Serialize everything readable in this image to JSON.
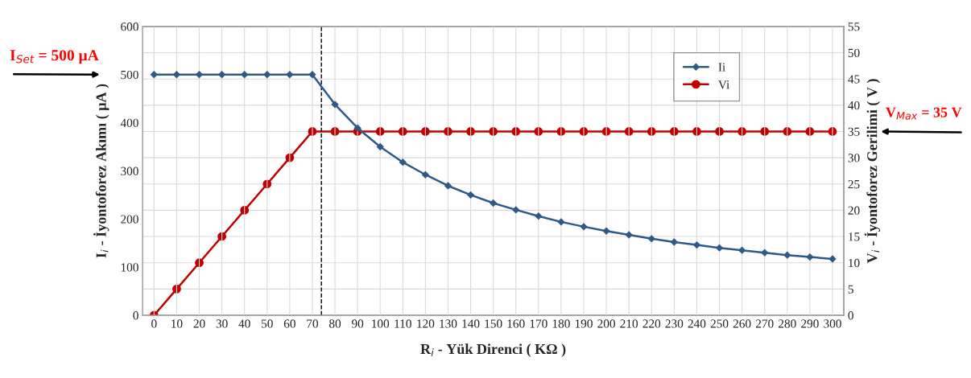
{
  "chart_data": {
    "type": "line",
    "x": [
      0,
      10,
      20,
      30,
      40,
      50,
      60,
      70,
      80,
      90,
      100,
      110,
      120,
      130,
      140,
      150,
      160,
      170,
      180,
      190,
      200,
      210,
      220,
      230,
      240,
      250,
      260,
      270,
      280,
      290,
      300
    ],
    "series": [
      {
        "name": "Ii",
        "color": "#2e5a88",
        "marker": "diamond",
        "values": [
          500,
          500,
          500,
          500,
          500,
          500,
          500,
          500,
          438,
          389,
          350,
          318,
          292,
          269,
          250,
          233,
          219,
          206,
          194,
          184,
          175,
          167,
          159,
          152,
          146,
          140,
          135,
          130,
          125,
          121,
          117
        ]
      },
      {
        "name": "Vi",
        "color": "#c00000",
        "marker": "circle",
        "axis": "y2",
        "values": [
          0,
          5,
          10,
          15,
          20,
          25,
          30,
          35,
          35,
          35,
          35,
          35,
          35,
          35,
          35,
          35,
          35,
          35,
          35,
          35,
          35,
          35,
          35,
          35,
          35,
          35,
          35,
          35,
          35,
          35,
          35
        ]
      }
    ],
    "xlabel": "R$_{i}$ - Yük Direnci ( KΩ )",
    "ylabel": "I$_{i}$ - İyontoforez Akımı ( µA )",
    "y2label": "V$_{i}$ - İyontoforez Gerilimi ( V )",
    "xlim": [
      -5,
      305
    ],
    "xticks": [
      0,
      10,
      20,
      30,
      40,
      50,
      60,
      70,
      80,
      90,
      100,
      110,
      120,
      130,
      140,
      150,
      160,
      170,
      180,
      190,
      200,
      210,
      220,
      230,
      240,
      250,
      260,
      270,
      280,
      290,
      300
    ],
    "ylim": [
      0,
      600
    ],
    "yticks": [
      0,
      100,
      200,
      300,
      400,
      500,
      600
    ],
    "y2lim": [
      0,
      55
    ],
    "y2ticks": [
      0,
      5,
      10,
      15,
      20,
      25,
      30,
      35,
      40,
      45,
      50,
      55
    ],
    "ref_lines": [
      {
        "axis": "x",
        "value": 74,
        "color": "#000000",
        "line_style": "dashed"
      }
    ],
    "annotations": [
      "I$_{Set}$ = 500 µA",
      "V$_{Max}$ = 35 V"
    ],
    "grid": true,
    "legend": "top right",
    "line_style": "solid"
  }
}
